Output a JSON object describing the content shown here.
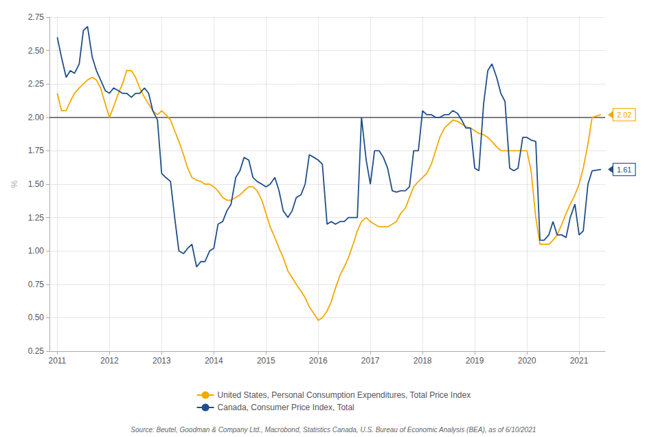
{
  "chart_data": {
    "type": "line",
    "y_label": "%",
    "x": [
      2011.0,
      2011.08,
      2011.17,
      2011.25,
      2011.33,
      2011.42,
      2011.5,
      2011.58,
      2011.67,
      2011.75,
      2011.83,
      2011.92,
      2012.0,
      2012.08,
      2012.17,
      2012.25,
      2012.33,
      2012.42,
      2012.5,
      2012.58,
      2012.67,
      2012.75,
      2012.83,
      2012.92,
      2013.0,
      2013.08,
      2013.17,
      2013.25,
      2013.33,
      2013.42,
      2013.5,
      2013.58,
      2013.67,
      2013.75,
      2013.83,
      2013.92,
      2014.0,
      2014.08,
      2014.17,
      2014.25,
      2014.33,
      2014.42,
      2014.5,
      2014.58,
      2014.67,
      2014.75,
      2014.83,
      2014.92,
      2015.0,
      2015.08,
      2015.17,
      2015.25,
      2015.33,
      2015.42,
      2015.5,
      2015.58,
      2015.67,
      2015.75,
      2015.83,
      2015.92,
      2016.0,
      2016.08,
      2016.17,
      2016.25,
      2016.33,
      2016.42,
      2016.5,
      2016.58,
      2016.67,
      2016.75,
      2016.83,
      2016.92,
      2017.0,
      2017.08,
      2017.17,
      2017.25,
      2017.33,
      2017.42,
      2017.5,
      2017.58,
      2017.67,
      2017.75,
      2017.83,
      2017.92,
      2018.0,
      2018.08,
      2018.17,
      2018.25,
      2018.33,
      2018.42,
      2018.5,
      2018.58,
      2018.67,
      2018.75,
      2018.83,
      2018.92,
      2019.0,
      2019.08,
      2019.17,
      2019.25,
      2019.33,
      2019.42,
      2019.5,
      2019.58,
      2019.67,
      2019.75,
      2019.83,
      2019.92,
      2020.0,
      2020.08,
      2020.17,
      2020.25,
      2020.33,
      2020.42,
      2020.5,
      2020.58,
      2020.67,
      2020.75,
      2020.83,
      2020.92,
      2021.0,
      2021.08,
      2021.17,
      2021.25,
      2021.42
    ],
    "series": [
      {
        "name": "United States, Personal Consumption Expenditures, Total Price Index",
        "color": "#F5A800",
        "values": [
          2.18,
          2.05,
          2.05,
          2.12,
          2.18,
          2.22,
          2.25,
          2.28,
          2.3,
          2.28,
          2.22,
          2.1,
          2.0,
          2.08,
          2.18,
          2.25,
          2.35,
          2.35,
          2.3,
          2.22,
          2.15,
          2.1,
          2.05,
          2.02,
          2.05,
          2.02,
          1.98,
          1.9,
          1.82,
          1.72,
          1.62,
          1.55,
          1.53,
          1.52,
          1.5,
          1.5,
          1.48,
          1.45,
          1.4,
          1.38,
          1.38,
          1.4,
          1.42,
          1.45,
          1.48,
          1.48,
          1.45,
          1.38,
          1.28,
          1.18,
          1.1,
          1.02,
          0.95,
          0.85,
          0.8,
          0.75,
          0.7,
          0.65,
          0.58,
          0.53,
          0.48,
          0.5,
          0.55,
          0.62,
          0.72,
          0.82,
          0.88,
          0.95,
          1.05,
          1.15,
          1.22,
          1.25,
          1.22,
          1.2,
          1.18,
          1.18,
          1.18,
          1.2,
          1.22,
          1.28,
          1.32,
          1.4,
          1.48,
          1.52,
          1.55,
          1.58,
          1.65,
          1.75,
          1.85,
          1.92,
          1.95,
          1.98,
          1.97,
          1.95,
          1.93,
          1.92,
          1.9,
          1.88,
          1.87,
          1.85,
          1.82,
          1.78,
          1.75,
          1.75,
          1.75,
          1.75,
          1.75,
          1.75,
          1.75,
          1.6,
          1.25,
          1.05,
          1.05,
          1.05,
          1.08,
          1.12,
          1.2,
          1.28,
          1.35,
          1.42,
          1.5,
          1.62,
          1.8,
          2.0,
          2.02
        ]
      },
      {
        "name": "Canada, Consumer Price Index, Total",
        "color": "#1F4E8C",
        "values": [
          2.6,
          2.45,
          2.3,
          2.35,
          2.33,
          2.4,
          2.65,
          2.68,
          2.45,
          2.35,
          2.28,
          2.2,
          2.18,
          2.22,
          2.2,
          2.18,
          2.18,
          2.15,
          2.18,
          2.18,
          2.22,
          2.18,
          2.05,
          1.98,
          1.58,
          1.55,
          1.52,
          1.25,
          1.0,
          0.98,
          1.02,
          1.05,
          0.88,
          0.92,
          0.92,
          1.0,
          1.02,
          1.2,
          1.22,
          1.3,
          1.35,
          1.55,
          1.6,
          1.7,
          1.68,
          1.55,
          1.52,
          1.5,
          1.48,
          1.5,
          1.55,
          1.45,
          1.3,
          1.25,
          1.3,
          1.4,
          1.42,
          1.5,
          1.72,
          1.7,
          1.68,
          1.65,
          1.2,
          1.22,
          1.2,
          1.22,
          1.22,
          1.25,
          1.25,
          1.25,
          2.0,
          1.68,
          1.5,
          1.75,
          1.75,
          1.7,
          1.62,
          1.45,
          1.44,
          1.45,
          1.45,
          1.48,
          1.75,
          1.75,
          2.05,
          2.02,
          2.02,
          2.0,
          2.0,
          2.02,
          2.02,
          2.05,
          2.03,
          1.98,
          1.92,
          1.92,
          1.62,
          1.6,
          2.1,
          2.35,
          2.4,
          2.3,
          2.18,
          2.12,
          1.62,
          1.6,
          1.62,
          1.85,
          1.85,
          1.83,
          1.82,
          1.08,
          1.08,
          1.12,
          1.22,
          1.12,
          1.12,
          1.1,
          1.25,
          1.35,
          1.12,
          1.15,
          1.5,
          1.6,
          1.61
        ]
      }
    ],
    "hlines": [
      {
        "value": 2.0,
        "color": "#555555"
      }
    ],
    "annotations": [
      {
        "text": "2.02",
        "y": 2.02,
        "color": "#F5A800"
      },
      {
        "text": "1.61",
        "y": 1.61,
        "color": "#1F4E8C"
      },
      {
        "text": "Source: Beutel, Goodman & Company Ltd., Macrobond, Statistics Canada, U.S. Bureau of Economic Analysis (BEA), as of 6/10/2021"
      }
    ],
    "xlim": [
      2010.85,
      2021.5
    ],
    "xticks": [
      2011,
      2012,
      2013,
      2014,
      2015,
      2016,
      2017,
      2018,
      2019,
      2020,
      2021
    ],
    "ylim": [
      0.25,
      2.75
    ],
    "yticks": [
      0.25,
      {
        "value": 0.5,
        "label": "0.50"
      },
      0.75,
      {
        "value": 1.0,
        "label": "1.00"
      },
      1.25,
      {
        "value": 1.5,
        "label": "1.50"
      },
      1.75,
      {
        "value": 2.0,
        "label": "2.00"
      },
      2.25,
      {
        "value": 2.5,
        "label": "2.50"
      },
      2.75
    ],
    "grid": true,
    "legend": "bottom"
  }
}
